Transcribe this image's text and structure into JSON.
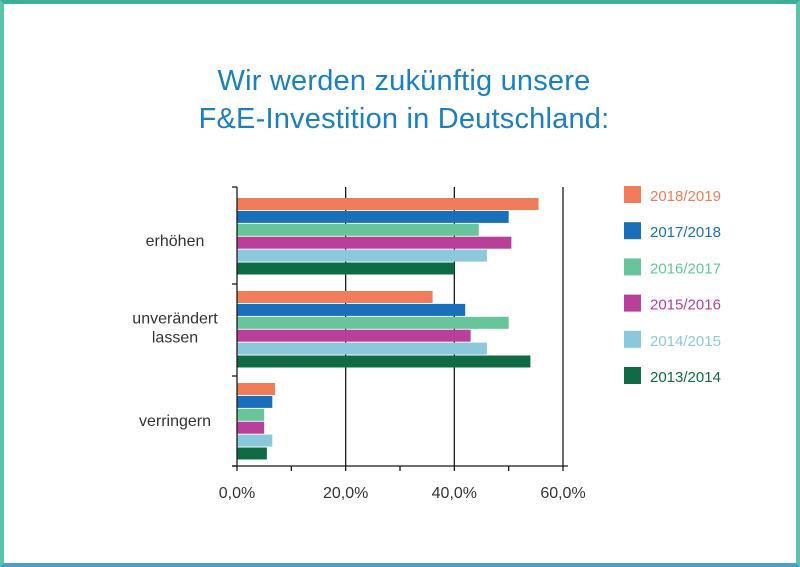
{
  "title": {
    "line1": "Wir werden zukünftig unsere",
    "line2": "F&E-Investition in Deutschland:"
  },
  "chart_data": {
    "type": "bar",
    "orientation": "horizontal",
    "categories": [
      "erhöhen",
      "unverändert lassen",
      "verringern"
    ],
    "category_lines": [
      [
        "erhöhen"
      ],
      [
        "unverändert",
        "lassen"
      ],
      [
        "verringern"
      ]
    ],
    "series": [
      {
        "name": "2018/2019",
        "color": "#f07c5a",
        "values": [
          55.5,
          36.0,
          7.0
        ]
      },
      {
        "name": "2017/2018",
        "color": "#1a6fba",
        "values": [
          50.0,
          42.0,
          6.5
        ]
      },
      {
        "name": "2016/2017",
        "color": "#66c59a",
        "values": [
          44.5,
          50.0,
          5.0
        ]
      },
      {
        "name": "2015/2016",
        "color": "#b9409a",
        "values": [
          50.5,
          43.0,
          5.0
        ]
      },
      {
        "name": "2014/2015",
        "color": "#8cc8dc",
        "values": [
          46.0,
          46.0,
          6.5
        ]
      },
      {
        "name": "2013/2014",
        "color": "#0f6b44",
        "values": [
          40.0,
          54.0,
          5.5
        ]
      }
    ],
    "xlim": [
      0,
      60
    ],
    "xticks": [
      "0,0%",
      "20,0%",
      "40,0%",
      "60,0%"
    ],
    "xtick_values": [
      0,
      20,
      40,
      60
    ],
    "minor_ticks": [
      10,
      30,
      50
    ],
    "grid": true,
    "legend_position": "right"
  }
}
